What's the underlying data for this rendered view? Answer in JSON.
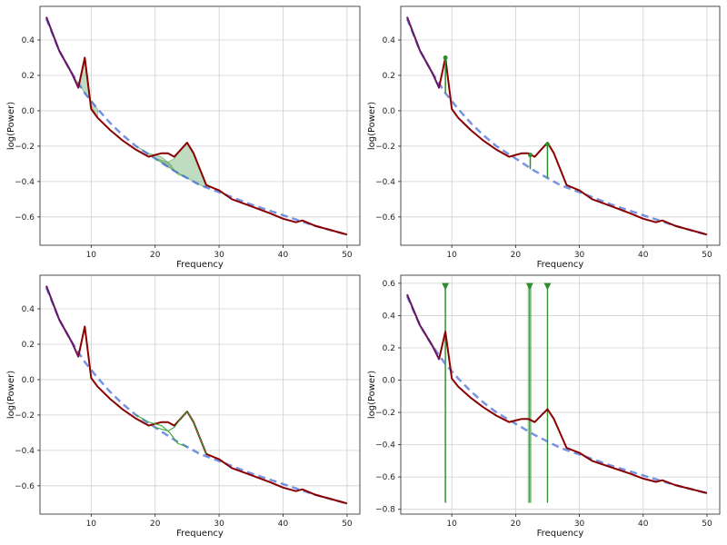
{
  "chart_data": [
    {
      "type": "line",
      "xlabel": "Frequency",
      "ylabel": "log(Power)",
      "xlim": [
        2,
        52
      ],
      "ylim": [
        -0.76,
        0.59
      ],
      "xticks": [
        10,
        20,
        30,
        40,
        50
      ],
      "yticks": [
        -0.6,
        -0.4,
        -0.2,
        0.0,
        0.2,
        0.4
      ],
      "xtick_labels": [
        "10",
        "20",
        "30",
        "40",
        "50"
      ],
      "ytick_labels": [
        "−0.6",
        "−0.4",
        "−0.2",
        "0.0",
        "0.2",
        "0.4"
      ],
      "grid": true,
      "series": [
        {
          "x": [
            3,
            5,
            7,
            8,
            9,
            10,
            11,
            13,
            15,
            17,
            19,
            20,
            21,
            22,
            23,
            24,
            25,
            26,
            27,
            28,
            30,
            32,
            35,
            38,
            40,
            42,
            43,
            45,
            48,
            50
          ],
          "values": [
            0.53,
            0.34,
            0.21,
            0.13,
            0.3,
            0.01,
            -0.04,
            -0.11,
            -0.17,
            -0.22,
            -0.26,
            -0.25,
            -0.24,
            -0.24,
            -0.26,
            -0.22,
            -0.18,
            -0.24,
            -0.33,
            -0.42,
            -0.45,
            -0.5,
            -0.54,
            -0.58,
            -0.61,
            -0.63,
            -0.62,
            -0.65,
            -0.68,
            -0.7
          ],
          "color": "#8b0000"
        },
        {
          "x": [
            3,
            5,
            7,
            9,
            11,
            13,
            15,
            17,
            20,
            23,
            25,
            27,
            30,
            35,
            40,
            45,
            50
          ],
          "values": [
            0.52,
            0.34,
            0.21,
            0.1,
            0.01,
            -0.07,
            -0.14,
            -0.2,
            -0.27,
            -0.34,
            -0.38,
            -0.42,
            -0.46,
            -0.53,
            -0.59,
            -0.65,
            -0.7
          ],
          "color": "#4a6fd8"
        }
      ],
      "peaks": [
        {
          "fit_x": [
            7,
            8,
            8.5,
            9,
            9.5,
            10,
            11
          ],
          "fit_y": [
            0.21,
            0.14,
            0.22,
            0.3,
            0.18,
            0.03,
            -0.04
          ]
        },
        {
          "fit_x": [
            17,
            19,
            21,
            22.3,
            23.5,
            25
          ],
          "fit_y": [
            -0.2,
            -0.24,
            -0.26,
            -0.3,
            -0.36,
            -0.38
          ]
        },
        {
          "fit_x": [
            20,
            22,
            23,
            24,
            25,
            26,
            27,
            28
          ],
          "fit_y": [
            -0.27,
            -0.29,
            -0.27,
            -0.22,
            -0.18,
            -0.24,
            -0.33,
            -0.42
          ]
        }
      ]
    },
    {
      "type": "line",
      "xlabel": "Frequency",
      "ylabel": "log(Power)",
      "xlim": [
        2,
        52
      ],
      "ylim": [
        -0.76,
        0.59
      ],
      "xticks": [
        10,
        20,
        30,
        40,
        50
      ],
      "yticks": [
        -0.6,
        -0.4,
        -0.2,
        0.0,
        0.2,
        0.4
      ],
      "xtick_labels": [
        "10",
        "20",
        "30",
        "40",
        "50"
      ],
      "ytick_labels": [
        "−0.6",
        "−0.4",
        "−0.2",
        "0.0",
        "0.2",
        "0.4"
      ],
      "grid": true,
      "series": [
        {
          "x": [
            3,
            5,
            7,
            8,
            9,
            10,
            11,
            13,
            15,
            17,
            19,
            20,
            21,
            22,
            23,
            24,
            25,
            26,
            27,
            28,
            30,
            32,
            35,
            38,
            40,
            42,
            43,
            45,
            48,
            50
          ],
          "values": [
            0.53,
            0.34,
            0.21,
            0.13,
            0.3,
            0.01,
            -0.04,
            -0.11,
            -0.17,
            -0.22,
            -0.26,
            -0.25,
            -0.24,
            -0.24,
            -0.26,
            -0.22,
            -0.18,
            -0.24,
            -0.33,
            -0.42,
            -0.45,
            -0.5,
            -0.54,
            -0.58,
            -0.61,
            -0.63,
            -0.62,
            -0.65,
            -0.68,
            -0.7
          ],
          "color": "#8b0000"
        },
        {
          "x": [
            3,
            5,
            7,
            9,
            11,
            13,
            15,
            17,
            20,
            23,
            25,
            27,
            30,
            35,
            40,
            45,
            50
          ],
          "values": [
            0.52,
            0.34,
            0.21,
            0.1,
            0.01,
            -0.07,
            -0.14,
            -0.2,
            -0.27,
            -0.34,
            -0.38,
            -0.42,
            -0.46,
            -0.53,
            -0.59,
            -0.65,
            -0.7
          ],
          "color": "#4a6fd8"
        }
      ],
      "peak_markers": [
        {
          "x": 9,
          "top": 0.3,
          "bottom": 0.1
        },
        {
          "x": 22.3,
          "top": -0.25,
          "bottom": -0.33
        },
        {
          "x": 25,
          "top": -0.19,
          "bottom": -0.38
        }
      ]
    },
    {
      "type": "line",
      "xlabel": "Frequency",
      "ylabel": "log(Power)",
      "xlim": [
        2,
        52
      ],
      "ylim": [
        -0.76,
        0.59
      ],
      "xticks": [
        10,
        20,
        30,
        40,
        50
      ],
      "yticks": [
        -0.6,
        -0.4,
        -0.2,
        0.0,
        0.2,
        0.4
      ],
      "xtick_labels": [
        "10",
        "20",
        "30",
        "40",
        "50"
      ],
      "ytick_labels": [
        "−0.6",
        "−0.4",
        "−0.2",
        "0.0",
        "0.2",
        "0.4"
      ],
      "grid": true,
      "series": [
        {
          "x": [
            3,
            5,
            7,
            8,
            9,
            10,
            11,
            13,
            15,
            17,
            19,
            20,
            21,
            22,
            23,
            24,
            25,
            26,
            27,
            28,
            30,
            32,
            35,
            38,
            40,
            42,
            43,
            45,
            48,
            50
          ],
          "values": [
            0.53,
            0.34,
            0.21,
            0.13,
            0.3,
            0.01,
            -0.04,
            -0.11,
            -0.17,
            -0.22,
            -0.26,
            -0.25,
            -0.24,
            -0.24,
            -0.26,
            -0.22,
            -0.18,
            -0.24,
            -0.33,
            -0.42,
            -0.45,
            -0.5,
            -0.54,
            -0.58,
            -0.61,
            -0.63,
            -0.62,
            -0.65,
            -0.68,
            -0.7
          ],
          "color": "#8b0000"
        },
        {
          "x": [
            3,
            5,
            7,
            9,
            11,
            13,
            15,
            17,
            20,
            23,
            25,
            27,
            30,
            35,
            40,
            45,
            50
          ],
          "values": [
            0.52,
            0.34,
            0.21,
            0.1,
            0.01,
            -0.07,
            -0.14,
            -0.2,
            -0.27,
            -0.34,
            -0.38,
            -0.42,
            -0.46,
            -0.53,
            -0.59,
            -0.65,
            -0.7
          ],
          "color": "#4a6fd8"
        }
      ],
      "peak_curves": [
        {
          "x": [
            17,
            19,
            21,
            22.3,
            23.5,
            25
          ],
          "y": [
            -0.2,
            -0.24,
            -0.26,
            -0.3,
            -0.36,
            -0.38
          ]
        },
        {
          "x": [
            20,
            22,
            23,
            24,
            25,
            26,
            27,
            28
          ],
          "y": [
            -0.27,
            -0.29,
            -0.27,
            -0.22,
            -0.18,
            -0.24,
            -0.33,
            -0.42
          ]
        }
      ]
    },
    {
      "type": "line",
      "xlabel": "Frequency",
      "ylabel": "log(Power)",
      "xlim": [
        2,
        52
      ],
      "ylim": [
        -0.83,
        0.65
      ],
      "xticks": [
        10,
        20,
        30,
        40,
        50
      ],
      "yticks": [
        -0.8,
        -0.6,
        -0.4,
        -0.2,
        0.0,
        0.2,
        0.4,
        0.6
      ],
      "xtick_labels": [
        "10",
        "20",
        "30",
        "40",
        "50"
      ],
      "ytick_labels": [
        "−0.8",
        "−0.6",
        "−0.4",
        "−0.2",
        "0.0",
        "0.2",
        "0.4",
        "0.6"
      ],
      "grid": true,
      "series": [
        {
          "x": [
            3,
            5,
            7,
            8,
            9,
            10,
            11,
            13,
            15,
            17,
            19,
            20,
            21,
            22,
            23,
            24,
            25,
            26,
            27,
            28,
            30,
            32,
            35,
            38,
            40,
            42,
            43,
            45,
            48,
            50
          ],
          "values": [
            0.53,
            0.34,
            0.21,
            0.13,
            0.3,
            0.01,
            -0.04,
            -0.11,
            -0.17,
            -0.22,
            -0.26,
            -0.25,
            -0.24,
            -0.24,
            -0.26,
            -0.22,
            -0.18,
            -0.24,
            -0.33,
            -0.42,
            -0.45,
            -0.5,
            -0.54,
            -0.58,
            -0.61,
            -0.63,
            -0.62,
            -0.65,
            -0.68,
            -0.7
          ],
          "color": "#8b0000"
        },
        {
          "x": [
            3,
            5,
            7,
            9,
            11,
            13,
            15,
            17,
            20,
            23,
            25,
            27,
            30,
            35,
            40,
            45,
            50
          ],
          "values": [
            0.52,
            0.34,
            0.21,
            0.1,
            0.01,
            -0.07,
            -0.14,
            -0.2,
            -0.27,
            -0.34,
            -0.38,
            -0.42,
            -0.46,
            -0.53,
            -0.59,
            -0.65,
            -0.7
          ],
          "color": "#4a6fd8"
        }
      ],
      "bands": [
        {
          "x": 9,
          "width": 0.3
        },
        {
          "x": 22.2,
          "width": 0.6
        },
        {
          "x": 25,
          "width": 0.25
        }
      ],
      "band_range": [
        -0.76,
        0.58
      ]
    }
  ]
}
